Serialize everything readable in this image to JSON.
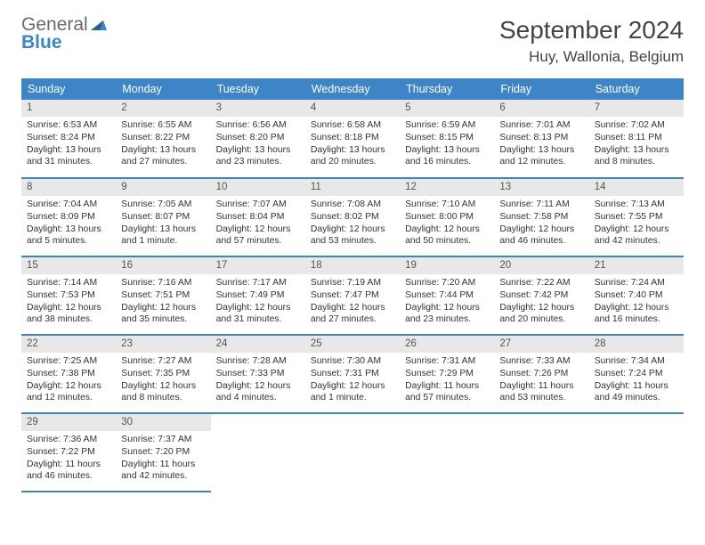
{
  "logo": {
    "word1": "General",
    "word2": "Blue"
  },
  "title": "September 2024",
  "location": "Huy, Wallonia, Belgium",
  "colors": {
    "header_bg": "#3d85c6",
    "header_text": "#ffffff",
    "daynum_bg": "#e8e8e8",
    "border": "#3d85c6",
    "logo_gray": "#6b6b6b",
    "logo_blue": "#3d85c6"
  },
  "weekdays": [
    "Sunday",
    "Monday",
    "Tuesday",
    "Wednesday",
    "Thursday",
    "Friday",
    "Saturday"
  ],
  "days": [
    {
      "n": "1",
      "sunrise": "6:53 AM",
      "sunset": "8:24 PM",
      "daylight": "13 hours and 31 minutes."
    },
    {
      "n": "2",
      "sunrise": "6:55 AM",
      "sunset": "8:22 PM",
      "daylight": "13 hours and 27 minutes."
    },
    {
      "n": "3",
      "sunrise": "6:56 AM",
      "sunset": "8:20 PM",
      "daylight": "13 hours and 23 minutes."
    },
    {
      "n": "4",
      "sunrise": "6:58 AM",
      "sunset": "8:18 PM",
      "daylight": "13 hours and 20 minutes."
    },
    {
      "n": "5",
      "sunrise": "6:59 AM",
      "sunset": "8:15 PM",
      "daylight": "13 hours and 16 minutes."
    },
    {
      "n": "6",
      "sunrise": "7:01 AM",
      "sunset": "8:13 PM",
      "daylight": "13 hours and 12 minutes."
    },
    {
      "n": "7",
      "sunrise": "7:02 AM",
      "sunset": "8:11 PM",
      "daylight": "13 hours and 8 minutes."
    },
    {
      "n": "8",
      "sunrise": "7:04 AM",
      "sunset": "8:09 PM",
      "daylight": "13 hours and 5 minutes."
    },
    {
      "n": "9",
      "sunrise": "7:05 AM",
      "sunset": "8:07 PM",
      "daylight": "13 hours and 1 minute."
    },
    {
      "n": "10",
      "sunrise": "7:07 AM",
      "sunset": "8:04 PM",
      "daylight": "12 hours and 57 minutes."
    },
    {
      "n": "11",
      "sunrise": "7:08 AM",
      "sunset": "8:02 PM",
      "daylight": "12 hours and 53 minutes."
    },
    {
      "n": "12",
      "sunrise": "7:10 AM",
      "sunset": "8:00 PM",
      "daylight": "12 hours and 50 minutes."
    },
    {
      "n": "13",
      "sunrise": "7:11 AM",
      "sunset": "7:58 PM",
      "daylight": "12 hours and 46 minutes."
    },
    {
      "n": "14",
      "sunrise": "7:13 AM",
      "sunset": "7:55 PM",
      "daylight": "12 hours and 42 minutes."
    },
    {
      "n": "15",
      "sunrise": "7:14 AM",
      "sunset": "7:53 PM",
      "daylight": "12 hours and 38 minutes."
    },
    {
      "n": "16",
      "sunrise": "7:16 AM",
      "sunset": "7:51 PM",
      "daylight": "12 hours and 35 minutes."
    },
    {
      "n": "17",
      "sunrise": "7:17 AM",
      "sunset": "7:49 PM",
      "daylight": "12 hours and 31 minutes."
    },
    {
      "n": "18",
      "sunrise": "7:19 AM",
      "sunset": "7:47 PM",
      "daylight": "12 hours and 27 minutes."
    },
    {
      "n": "19",
      "sunrise": "7:20 AM",
      "sunset": "7:44 PM",
      "daylight": "12 hours and 23 minutes."
    },
    {
      "n": "20",
      "sunrise": "7:22 AM",
      "sunset": "7:42 PM",
      "daylight": "12 hours and 20 minutes."
    },
    {
      "n": "21",
      "sunrise": "7:24 AM",
      "sunset": "7:40 PM",
      "daylight": "12 hours and 16 minutes."
    },
    {
      "n": "22",
      "sunrise": "7:25 AM",
      "sunset": "7:38 PM",
      "daylight": "12 hours and 12 minutes."
    },
    {
      "n": "23",
      "sunrise": "7:27 AM",
      "sunset": "7:35 PM",
      "daylight": "12 hours and 8 minutes."
    },
    {
      "n": "24",
      "sunrise": "7:28 AM",
      "sunset": "7:33 PM",
      "daylight": "12 hours and 4 minutes."
    },
    {
      "n": "25",
      "sunrise": "7:30 AM",
      "sunset": "7:31 PM",
      "daylight": "12 hours and 1 minute."
    },
    {
      "n": "26",
      "sunrise": "7:31 AM",
      "sunset": "7:29 PM",
      "daylight": "11 hours and 57 minutes."
    },
    {
      "n": "27",
      "sunrise": "7:33 AM",
      "sunset": "7:26 PM",
      "daylight": "11 hours and 53 minutes."
    },
    {
      "n": "28",
      "sunrise": "7:34 AM",
      "sunset": "7:24 PM",
      "daylight": "11 hours and 49 minutes."
    },
    {
      "n": "29",
      "sunrise": "7:36 AM",
      "sunset": "7:22 PM",
      "daylight": "11 hours and 46 minutes."
    },
    {
      "n": "30",
      "sunrise": "7:37 AM",
      "sunset": "7:20 PM",
      "daylight": "11 hours and 42 minutes."
    }
  ],
  "labels": {
    "sunrise": "Sunrise:",
    "sunset": "Sunset:",
    "daylight": "Daylight:"
  }
}
